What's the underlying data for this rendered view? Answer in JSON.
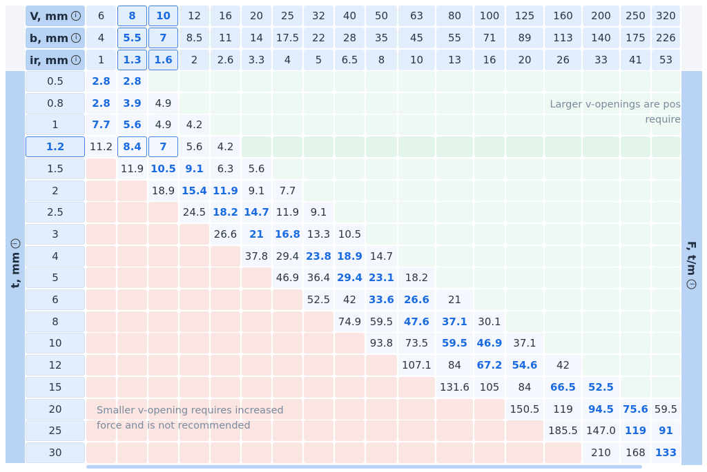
{
  "header_rows": [
    {
      "label": "V, mm",
      "values": [
        "6",
        "8",
        "10",
        "12",
        "16",
        "20",
        "25",
        "32",
        "40",
        "50",
        "63",
        "80",
        "100",
        "125",
        "160",
        "200",
        "250",
        "320"
      ]
    },
    {
      "label": "b, mm",
      "values": [
        "4",
        "5.5",
        "7",
        "8.5",
        "11",
        "14",
        "17.5",
        "22",
        "28",
        "35",
        "45",
        "55",
        "71",
        "89",
        "113",
        "140",
        "175",
        "226"
      ]
    },
    {
      "label": "ir, mm",
      "values": [
        "1",
        "1.3",
        "1.6",
        "2",
        "2.6",
        "3.3",
        "4",
        "5",
        "6.5",
        "8",
        "10",
        "13",
        "16",
        "20",
        "26",
        "33",
        "41",
        "53"
      ]
    }
  ],
  "row_axis_label": "t, mm",
  "value_axis_label": "F, t/m",
  "info_icon": "info-circle-icon",
  "selected_columns_V": [
    "8",
    "10"
  ],
  "selected_row_t": "1.2",
  "rows": [
    {
      "t": "0.5",
      "cells": [
        "2.8",
        "2.8",
        "",
        "",
        "",
        "",
        "",
        "",
        "",
        "",
        "",
        "",
        "",
        "",
        "",
        "",
        "",
        ""
      ],
      "bold": [
        0,
        1
      ]
    },
    {
      "t": "0.8",
      "cells": [
        "2.8",
        "3.9",
        "4.9",
        "",
        "",
        "",
        "",
        "",
        "",
        "",
        "",
        "",
        "",
        "",
        "",
        "",
        "",
        ""
      ],
      "bold": [
        0,
        1
      ]
    },
    {
      "t": "1",
      "cells": [
        "7.7",
        "5.6",
        "4.9",
        "4.2",
        "",
        "",
        "",
        "",
        "",
        "",
        "",
        "",
        "",
        "",
        "",
        "",
        "",
        ""
      ],
      "bold": [
        0,
        1
      ]
    },
    {
      "t": "1.2",
      "cells": [
        "11.2",
        "8.4",
        "7",
        "5.6",
        "4.2",
        "",
        "",
        "",
        "",
        "",
        "",
        "",
        "",
        "",
        "",
        "",
        "",
        ""
      ],
      "bold": [
        1,
        2
      ]
    },
    {
      "t": "1.5",
      "cells": [
        "",
        "11.9",
        "10.5",
        "9.1",
        "6.3",
        "5.6",
        "",
        "",
        "",
        "",
        "",
        "",
        "",
        "",
        "",
        "",
        "",
        ""
      ],
      "bold": [
        2,
        3
      ]
    },
    {
      "t": "2",
      "cells": [
        "",
        "",
        "18.9",
        "15.4",
        "11.9",
        "9.1",
        "7.7",
        "",
        "",
        "",
        "",
        "",
        "",
        "",
        "",
        "",
        "",
        ""
      ],
      "bold": [
        3,
        4
      ]
    },
    {
      "t": "2.5",
      "cells": [
        "",
        "",
        "",
        "24.5",
        "18.2",
        "14.7",
        "11.9",
        "9.1",
        "",
        "",
        "",
        "",
        "",
        "",
        "",
        "",
        "",
        ""
      ],
      "bold": [
        4,
        5
      ]
    },
    {
      "t": "3",
      "cells": [
        "",
        "",
        "",
        "",
        "26.6",
        "21",
        "16.8",
        "13.3",
        "10.5",
        "",
        "",
        "",
        "",
        "",
        "",
        "",
        "",
        ""
      ],
      "bold": [
        5,
        6
      ]
    },
    {
      "t": "4",
      "cells": [
        "",
        "",
        "",
        "",
        "",
        "37.8",
        "29.4",
        "23.8",
        "18.9",
        "14.7",
        "",
        "",
        "",
        "",
        "",
        "",
        "",
        ""
      ],
      "bold": [
        7,
        8
      ]
    },
    {
      "t": "5",
      "cells": [
        "",
        "",
        "",
        "",
        "",
        "",
        "46.9",
        "36.4",
        "29.4",
        "23.1",
        "18.2",
        "",
        "",
        "",
        "",
        "",
        "",
        ""
      ],
      "bold": [
        8,
        9
      ]
    },
    {
      "t": "6",
      "cells": [
        "",
        "",
        "",
        "",
        "",
        "",
        "",
        "52.5",
        "42",
        "33.6",
        "26.6",
        "21",
        "",
        "",
        "",
        "",
        "",
        ""
      ],
      "bold": [
        9,
        10
      ]
    },
    {
      "t": "8",
      "cells": [
        "",
        "",
        "",
        "",
        "",
        "",
        "",
        "",
        "74.9",
        "59.5",
        "47.6",
        "37.1",
        "30.1",
        "",
        "",
        "",
        "",
        ""
      ],
      "bold": [
        10,
        11
      ]
    },
    {
      "t": "10",
      "cells": [
        "",
        "",
        "",
        "",
        "",
        "",
        "",
        "",
        "",
        "93.8",
        "73.5",
        "59.5",
        "46.9",
        "37.1",
        "",
        "",
        "",
        ""
      ],
      "bold": [
        11,
        12
      ]
    },
    {
      "t": "12",
      "cells": [
        "",
        "",
        "",
        "",
        "",
        "",
        "",
        "",
        "",
        "",
        "107.1",
        "84",
        "67.2",
        "54.6",
        "42",
        "",
        "",
        ""
      ],
      "bold": [
        12,
        13
      ]
    },
    {
      "t": "15",
      "cells": [
        "",
        "",
        "",
        "",
        "",
        "",
        "",
        "",
        "",
        "",
        "",
        "131.6",
        "105",
        "84",
        "66.5",
        "52.5",
        "",
        ""
      ],
      "bold": [
        14,
        15
      ]
    },
    {
      "t": "20",
      "cells": [
        "",
        "",
        "",
        "",
        "",
        "",
        "",
        "",
        "",
        "",
        "",
        "",
        "",
        "150.5",
        "119",
        "94.5",
        "75.6",
        "59.5"
      ],
      "bold": [
        15,
        16
      ]
    },
    {
      "t": "25",
      "cells": [
        "",
        "",
        "",
        "",
        "",
        "",
        "",
        "",
        "",
        "",
        "",
        "",
        "",
        "",
        "185.5",
        "147.0",
        "119",
        "91"
      ],
      "bold": [
        16,
        17
      ]
    },
    {
      "t": "30",
      "cells": [
        "",
        "",
        "",
        "",
        "",
        "",
        "",
        "",
        "",
        "",
        "",
        "",
        "",
        "",
        "",
        "210",
        "168",
        "133"
      ],
      "bold": [
        17
      ]
    }
  ],
  "notes": {
    "larger_line1": "Larger v-openings are pos",
    "larger_line2": "require",
    "smaller_line1": "Smaller v-opening requires increased",
    "smaller_line2": "force and is not recommended"
  },
  "colors": {
    "accent": "#1a6be0",
    "header": "#e3eefc",
    "label": "#b9d3f5",
    "not_recommended": "#fbe5e2",
    "unused": "#eef9f3"
  }
}
